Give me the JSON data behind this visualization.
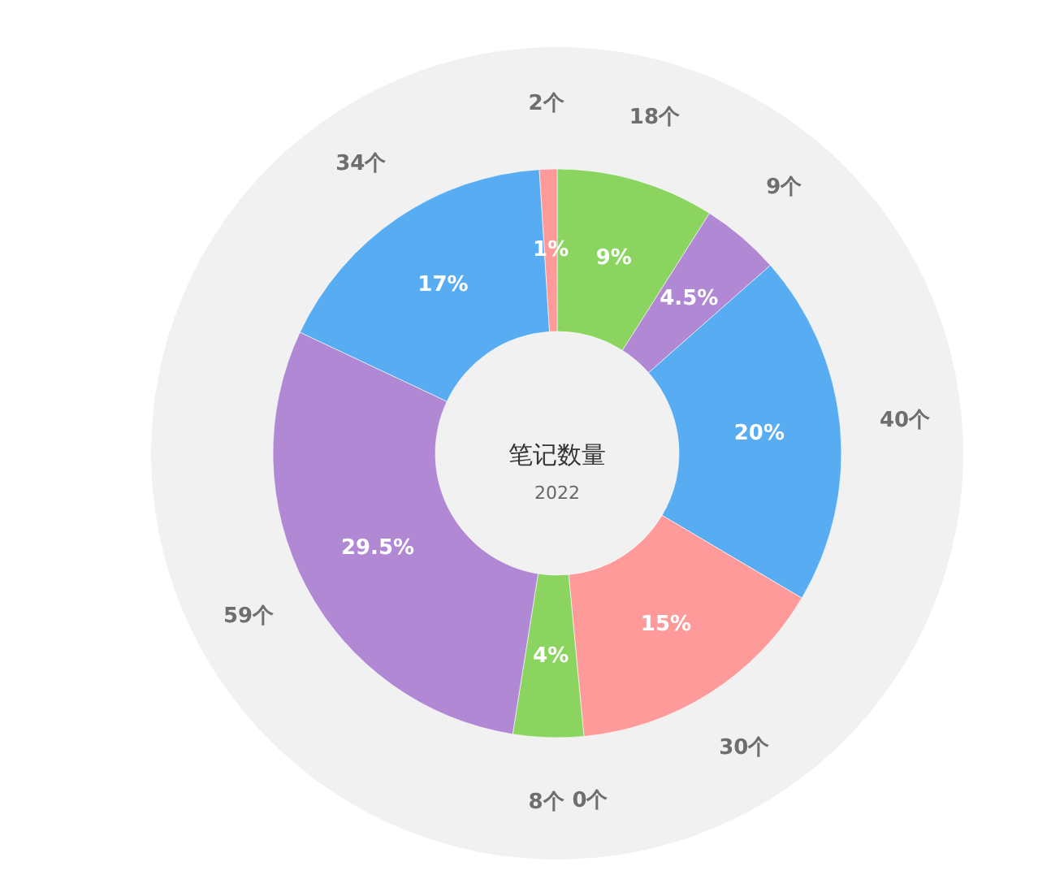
{
  "chart_data": {
    "type": "donut",
    "title": "笔记数量",
    "subtitle": "2022",
    "categories": [
      "18个",
      "9个",
      "40个",
      "30个",
      "0个",
      "8个",
      "59个",
      "34个",
      "2个"
    ],
    "values": [
      9,
      4.5,
      20,
      15,
      0,
      4,
      29.5,
      17,
      1
    ],
    "value_labels": [
      "9%",
      "4.5%",
      "20%",
      "15%",
      null,
      "4%",
      "29.5%",
      "17%",
      "1%"
    ],
    "colors": [
      "#8ad45f",
      "#b088d4",
      "#58acf2",
      "#ff9a9a",
      "#8ad45f",
      "#8ad45f",
      "#b088d4",
      "#58acf2",
      "#ff9a9a"
    ]
  }
}
